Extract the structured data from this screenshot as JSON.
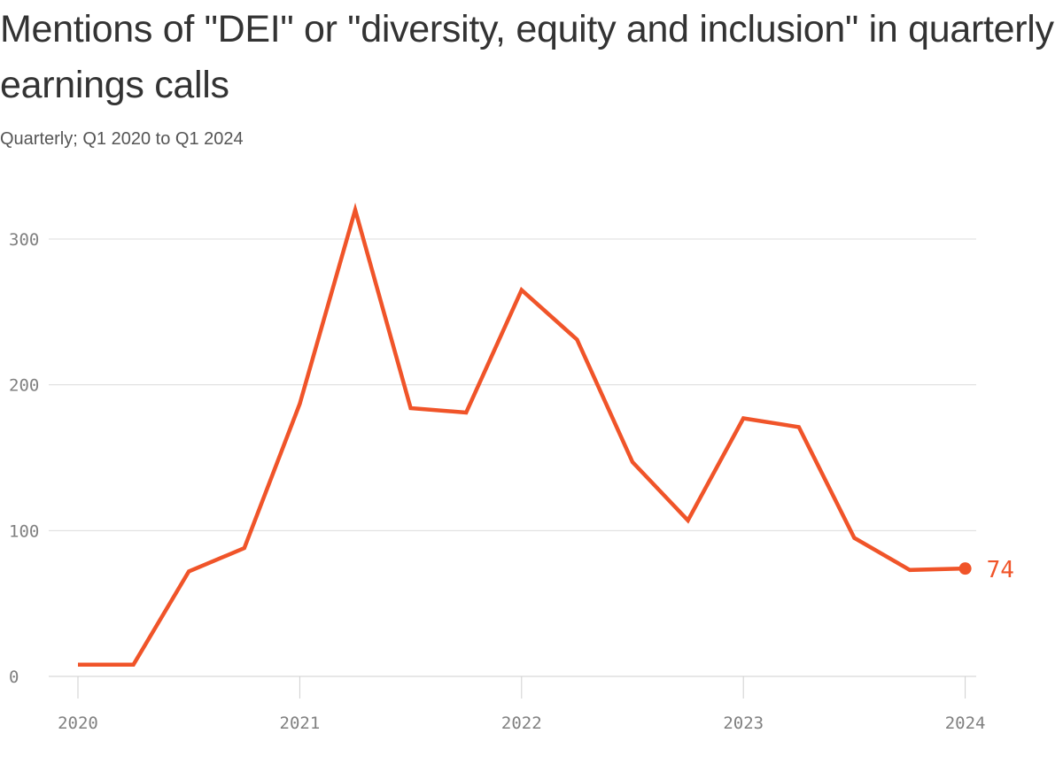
{
  "chart_data": {
    "type": "line",
    "title": "Mentions of \"DEI\" or \"diversity, equity and inclusion\" in quarterly earnings calls",
    "subtitle": "Quarterly; Q1 2020 to Q1 2024",
    "xlabel": "",
    "ylabel": "",
    "ylim": [
      0,
      300
    ],
    "yticks": [
      "0",
      "100",
      "200",
      "300"
    ],
    "xticks": [
      "2020",
      "2021",
      "2022",
      "2023",
      "2024"
    ],
    "grid": true,
    "series": [
      {
        "name": "Mentions",
        "color": "#f05429",
        "x": [
          "Q1 2020",
          "Q2 2020",
          "Q3 2020",
          "Q4 2020",
          "Q1 2021",
          "Q2 2021",
          "Q3 2021",
          "Q4 2021",
          "Q1 2022",
          "Q2 2022",
          "Q3 2022",
          "Q4 2022",
          "Q1 2023",
          "Q2 2023",
          "Q3 2023",
          "Q4 2023",
          "Q1 2024"
        ],
        "values": [
          8,
          8,
          72,
          88,
          187,
          320,
          184,
          181,
          265,
          231,
          147,
          107,
          177,
          171,
          95,
          73,
          74
        ]
      }
    ],
    "end_label": "74"
  }
}
